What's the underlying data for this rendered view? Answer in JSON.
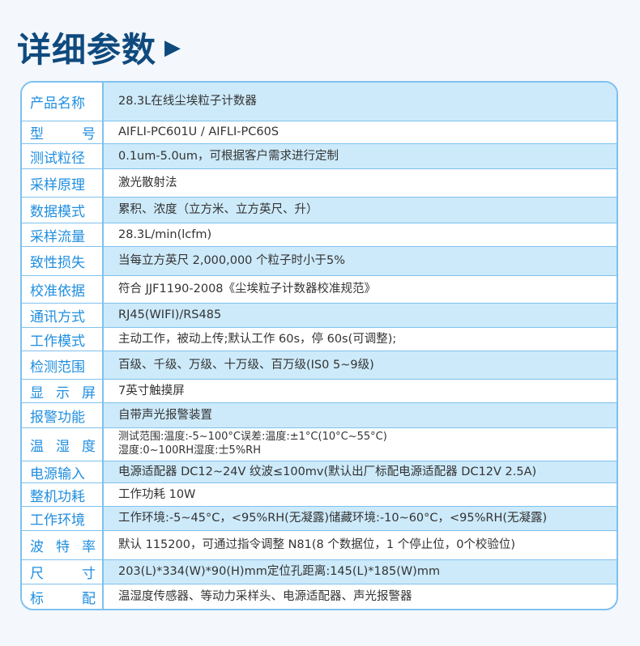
{
  "header": {
    "title": "详细参数",
    "arrow_icon": "triangle-right-icon"
  },
  "colors": {
    "title": "#0f4a7e",
    "label": "#1f8ee0",
    "border": "#7ec1ee",
    "row_highlight": "#cdeafa"
  },
  "specs": [
    {
      "label": "产品名称",
      "value": "28.3L在线尘埃粒子计数器"
    },
    {
      "label": "型号",
      "value": "AIFLI-PC601U / AIFLI-PC60S"
    },
    {
      "label": "测试粒径",
      "value": "0.1um-5.0um，可根据客户需求进行定制"
    },
    {
      "label": "采样原理",
      "value": "激光散射法"
    },
    {
      "label": "数据模式",
      "value": "累积、浓度（立方米、立方英尺、升）"
    },
    {
      "label": "采样流量",
      "value": "28.3L/min(lcfm)"
    },
    {
      "label": "致性损失",
      "value": "当每立方英尺 2,000,000 个粒子时小于5%"
    },
    {
      "label": "校准依据",
      "value": "符合 JJF1190-2008《尘埃粒子计数器校准规范》"
    },
    {
      "label": "通讯方式",
      "value": "RJ45(WIFI)/RS485"
    },
    {
      "label": "工作模式",
      "value": "主动工作，被动上传;默认工作 60s，停 60s(可调整);"
    },
    {
      "label": "检测范围",
      "value": "百级、千级、万级、十万级、百万级(IS0 5~9级)"
    },
    {
      "label": "显示屏",
      "value": "7英寸触摸屏"
    },
    {
      "label": "报警功能",
      "value": "自带声光报警装置"
    },
    {
      "label": "温湿度",
      "value": "测试范围:温度:-5~100°C误差:温度:±1°C(10°C~55°C)",
      "value2": "湿度:0~100RH湿度:士5%RH"
    },
    {
      "label": "电源输入",
      "value": "电源适配器 DC12~24V 纹波≤100mv(默认出厂标配电源适配器 DC12V 2.5A)"
    },
    {
      "label": "整机功耗",
      "value": "工作功耗 10W"
    },
    {
      "label": "工作环境",
      "value": "工作环境:-5~45°C，<95%RH(无凝露)储藏环境:-10~60°C，<95%RH(无凝露)"
    },
    {
      "label": "波特率",
      "value": "默认 115200，可通过指令调整 N81(8 个数据位，1 个停止位，0个校验位)"
    },
    {
      "label": "尺寸",
      "value": "203(L)*334(W)*90(H)mm定位孔距离:145(L)*185(W)mm"
    },
    {
      "label": "标配",
      "value": "温湿度传感器、等动力采样头、电源适配器、声光报警器"
    }
  ]
}
